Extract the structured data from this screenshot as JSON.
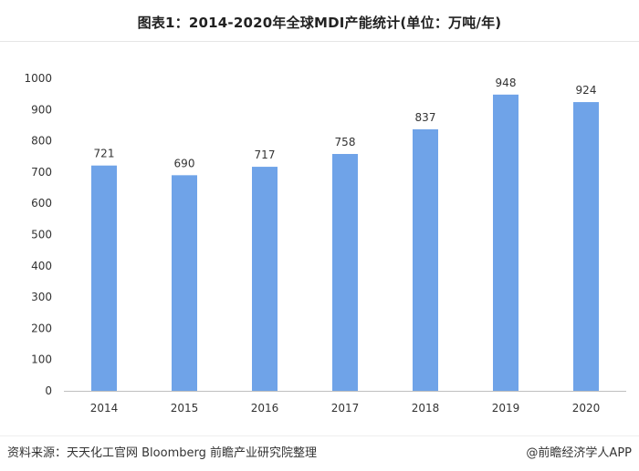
{
  "chart_data": {
    "type": "bar",
    "title": "图表1：2014-2020年全球MDI产能统计(单位：万吨/年)",
    "categories": [
      "2014",
      "2015",
      "2016",
      "2017",
      "2018",
      "2019",
      "2020"
    ],
    "values": [
      721,
      690,
      717,
      758,
      837,
      948,
      924
    ],
    "xlabel": "",
    "ylabel": "",
    "ylim": [
      0,
      1000
    ],
    "yticks": [
      0,
      100,
      200,
      300,
      400,
      500,
      600,
      700,
      800,
      900,
      1000
    ],
    "grid": false,
    "legend": "none",
    "bar_color": "#6fa3e8"
  },
  "footer": {
    "source": "资料来源：天天化工官网 Bloomberg 前瞻产业研究院整理",
    "credit": "@前瞻经济学人APP"
  }
}
